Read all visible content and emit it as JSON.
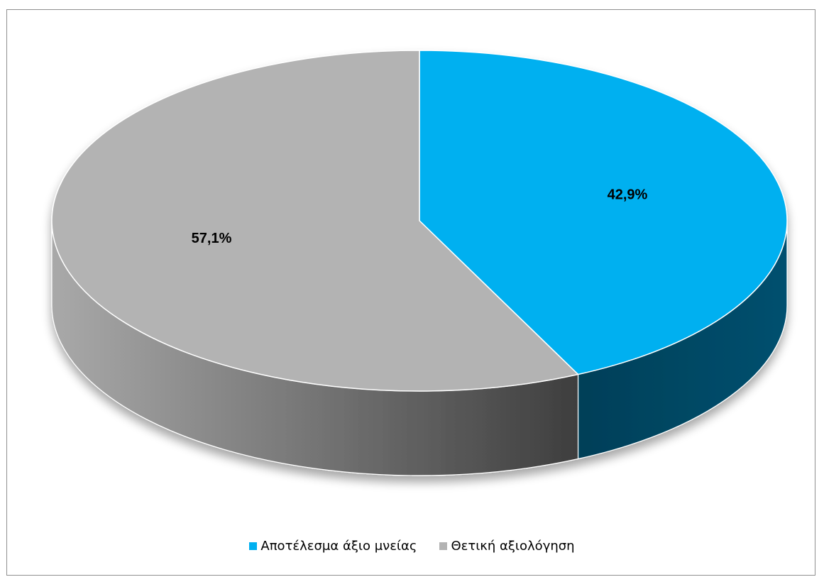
{
  "chart_data": {
    "type": "pie",
    "title": "",
    "categories": [
      "Αποτέλεσμα άξιο μνείας",
      "Θετική αξιολόγηση"
    ],
    "values": [
      42.9,
      57.1
    ],
    "data_labels": [
      "42,9%",
      "57,1%"
    ],
    "colors": [
      "#00b0f0",
      "#b3b3b3"
    ],
    "side_colors": [
      "#004b68",
      "#7a7a7a"
    ],
    "legend_position": "bottom",
    "style": "3d"
  }
}
